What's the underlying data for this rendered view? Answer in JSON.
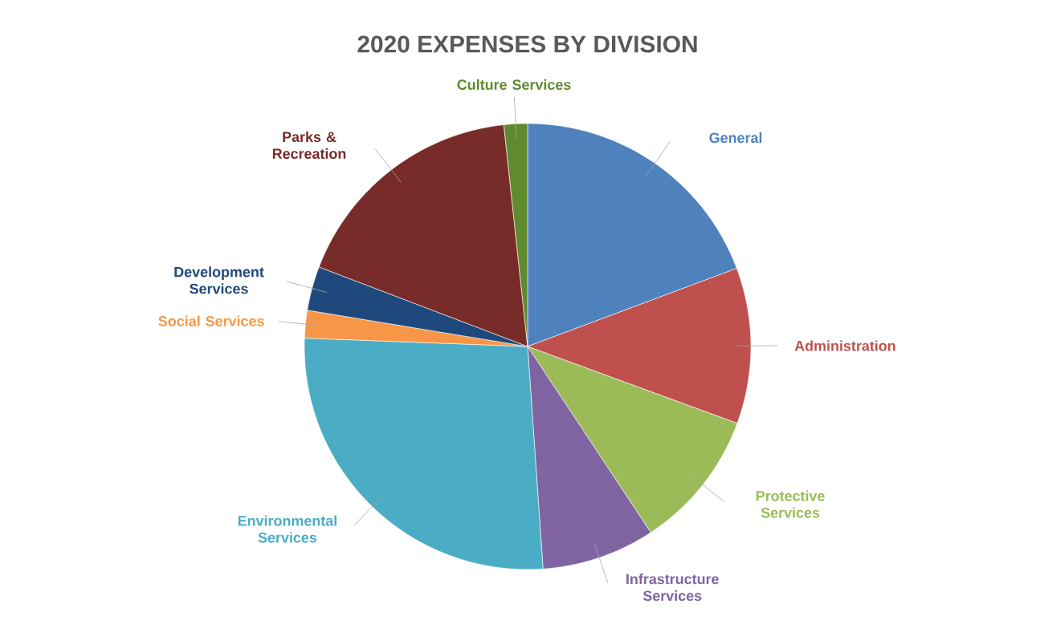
{
  "chart_data": {
    "type": "pie",
    "title": "2020 EXPENSES BY DIVISION",
    "categories": [
      "General",
      "Administration",
      "Protective Services",
      "Infrastructure Services",
      "Environmental Services",
      "Social Services",
      "Development Services",
      "Parks & Recreation",
      "Culture Services"
    ],
    "values": [
      19.3,
      11.3,
      10.1,
      8.2,
      26.7,
      2.0,
      3.2,
      17.5,
      1.7
    ],
    "colors": [
      "#4f81bd",
      "#c0504d",
      "#9bbb59",
      "#8064a2",
      "#4bacc6",
      "#f79646",
      "#1f497d",
      "#772c2a",
      "#5f8a2e"
    ]
  }
}
